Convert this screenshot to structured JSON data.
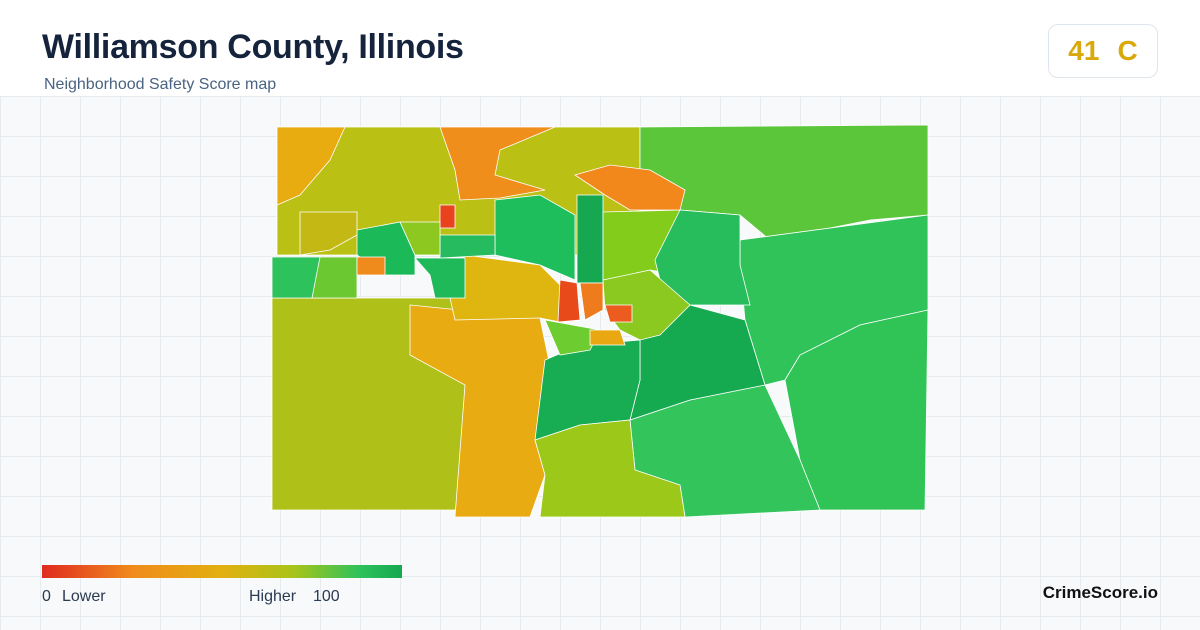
{
  "header": {
    "title": "Williamson County, Illinois",
    "subtitle": "Neighborhood Safety Score map"
  },
  "score": {
    "value": 41,
    "grade": "C"
  },
  "legend": {
    "min": 0,
    "min_label": "Lower",
    "max_label": "Higher",
    "max": 100
  },
  "brand": "CrimeScore.io"
}
